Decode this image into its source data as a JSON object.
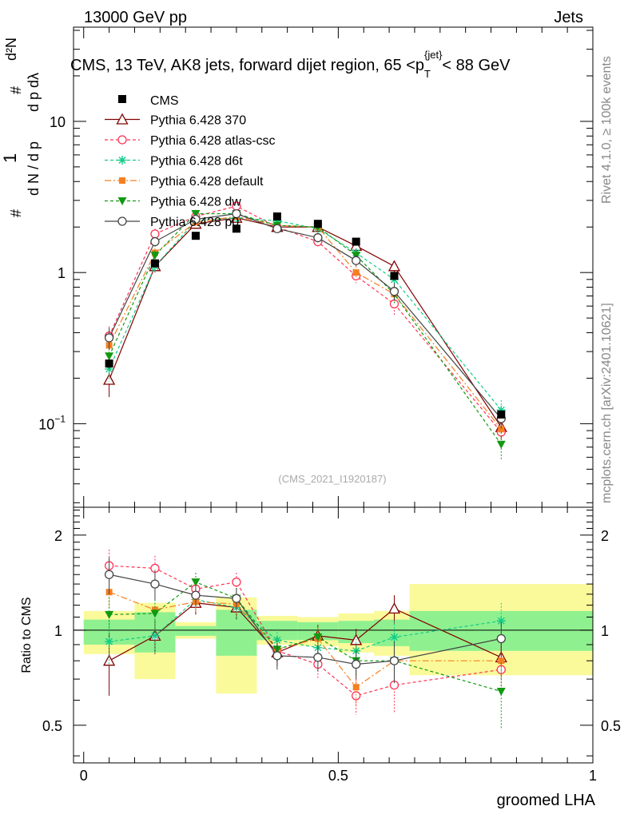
{
  "header": {
    "left": "13000 GeV pp",
    "right": "Jets",
    "side_top": "Rivet 4.1.0, ≥ 100k events",
    "side_bottom": "mcplots.cern.ch [arXiv:2401.10621]"
  },
  "chart_data": [
    {
      "type": "line",
      "panel": "main",
      "title": "CMS, 13 TeV, AK8 jets, forward dijet region, 65 <p",
      "title_sub": "T",
      "title_sup": "{jet}",
      "title_end": "< 88 GeV",
      "ylabel": "1 / dN/dpT d²N/dpT dλ",
      "watermark": "(CMS_2021_I1920187)",
      "y_scale": "log",
      "ylim": [
        0.028,
        42
      ],
      "xlim": [
        -0.02,
        1.0
      ],
      "y_ticks": [
        {
          "value": 0.1,
          "base": "10",
          "exp": "−1"
        },
        {
          "value": 1,
          "base": "1",
          "exp": ""
        },
        {
          "value": 10,
          "base": "10",
          "exp": ""
        }
      ],
      "x": [
        0.05,
        0.14,
        0.22,
        0.3,
        0.38,
        0.46,
        0.535,
        0.61,
        0.82
      ],
      "data_label": "CMS",
      "data_values": [
        0.25,
        1.15,
        1.75,
        1.95,
        2.35,
        2.1,
        1.6,
        0.95,
        0.115
      ],
      "series": [
        {
          "name": "Pythia 6.428 370",
          "values": [
            0.195,
            1.1,
            2.1,
            2.3,
            2.0,
            2.0,
            1.5,
            1.1,
            0.095
          ],
          "err": [
            0.045,
            0.1,
            0.15,
            0.15,
            0.12,
            0.12,
            0.12,
            0.1,
            0.015
          ]
        },
        {
          "name": "Pythia 6.428 atlas-csc",
          "values": [
            0.38,
            1.8,
            2.35,
            2.75,
            2.0,
            1.6,
            0.95,
            0.62,
            0.088
          ],
          "err": [
            0.06,
            0.15,
            0.15,
            0.18,
            0.12,
            0.12,
            0.1,
            0.1,
            0.015
          ]
        },
        {
          "name": "Pythia 6.428 d6t",
          "values": [
            0.23,
            1.1,
            2.2,
            2.3,
            2.2,
            1.95,
            1.35,
            0.9,
            0.123
          ],
          "err": [
            0.04,
            0.1,
            0.15,
            0.15,
            0.12,
            0.12,
            0.1,
            0.1,
            0.02
          ]
        },
        {
          "name": "Pythia 6.428 default",
          "values": [
            0.33,
            1.35,
            2.15,
            2.35,
            2.05,
            2.0,
            1.0,
            0.72,
            0.092
          ],
          "err": [
            0.05,
            0.1,
            0.15,
            0.15,
            0.12,
            0.12,
            0.1,
            0.1,
            0.015
          ]
        },
        {
          "name": "Pythia 6.428 dw",
          "values": [
            0.28,
            1.3,
            2.45,
            2.45,
            2.05,
            2.0,
            1.3,
            0.72,
            0.073
          ],
          "err": [
            0.05,
            0.1,
            0.15,
            0.15,
            0.12,
            0.12,
            0.1,
            0.1,
            0.015
          ]
        },
        {
          "name": "Pythia 6.428 p0",
          "values": [
            0.37,
            1.6,
            2.25,
            2.45,
            1.95,
            1.7,
            1.2,
            0.75,
            0.108
          ],
          "err": [
            0.06,
            0.12,
            0.15,
            0.15,
            0.12,
            0.12,
            0.1,
            0.1,
            0.015
          ]
        }
      ]
    },
    {
      "type": "line",
      "panel": "ratio",
      "ylabel": "Ratio to CMS",
      "xlabel": "groomed LHA",
      "ylim": [
        0.38,
        2.45
      ],
      "xlim": [
        -0.02,
        1.0
      ],
      "y_ticks": [
        0.5,
        1,
        2
      ],
      "y_tick_labels": [
        "0.5",
        "1",
        "2"
      ],
      "x_ticks": [
        0,
        0.5,
        1
      ],
      "x_tick_labels": [
        "0",
        "0.5",
        "1"
      ],
      "bands": [
        {
          "x0": 0.0,
          "x1": 0.1,
          "inner": [
            0.9,
            1.08
          ],
          "outer": [
            0.84,
            1.15
          ]
        },
        {
          "x0": 0.1,
          "x1": 0.18,
          "inner": [
            0.85,
            1.14
          ],
          "outer": [
            0.7,
            1.22
          ]
        },
        {
          "x0": 0.18,
          "x1": 0.26,
          "inner": [
            0.96,
            1.03
          ],
          "outer": [
            0.94,
            1.06
          ]
        },
        {
          "x0": 0.26,
          "x1": 0.34,
          "inner": [
            0.83,
            1.16
          ],
          "outer": [
            0.63,
            1.27
          ]
        },
        {
          "x0": 0.34,
          "x1": 0.42,
          "inner": [
            0.93,
            1.07
          ],
          "outer": [
            0.9,
            1.11
          ]
        },
        {
          "x0": 0.42,
          "x1": 0.5,
          "inner": [
            0.93,
            1.06
          ],
          "outer": [
            0.89,
            1.1
          ]
        },
        {
          "x0": 0.5,
          "x1": 0.57,
          "inner": [
            0.91,
            1.07
          ],
          "outer": [
            0.85,
            1.13
          ]
        },
        {
          "x0": 0.57,
          "x1": 0.64,
          "inner": [
            0.89,
            1.08
          ],
          "outer": [
            0.83,
            1.15
          ]
        },
        {
          "x0": 0.64,
          "x1": 1.0,
          "inner": [
            0.86,
            1.15
          ],
          "outer": [
            0.72,
            1.4
          ]
        }
      ],
      "series": [
        {
          "name": "Pythia 6.428 370",
          "values": [
            0.8,
            0.96,
            1.22,
            1.18,
            0.85,
            0.96,
            0.93,
            1.17,
            0.82
          ],
          "err": [
            0.18,
            0.12,
            0.1,
            0.1,
            0.08,
            0.08,
            0.08,
            0.12,
            0.1
          ]
        },
        {
          "name": "Pythia 6.428 atlas-csc",
          "values": [
            1.6,
            1.57,
            1.35,
            1.42,
            0.86,
            0.78,
            0.62,
            0.67,
            0.75
          ],
          "err": [
            0.2,
            0.15,
            0.1,
            0.1,
            0.08,
            0.08,
            0.08,
            0.12,
            0.1
          ]
        },
        {
          "name": "Pythia 6.428 d6t",
          "values": [
            0.92,
            0.96,
            1.25,
            1.18,
            0.93,
            0.88,
            0.86,
            0.95,
            1.07
          ],
          "err": [
            0.15,
            0.12,
            0.1,
            0.1,
            0.08,
            0.08,
            0.08,
            0.12,
            0.15
          ]
        },
        {
          "name": "Pythia 6.428 default",
          "values": [
            1.32,
            1.16,
            1.23,
            1.21,
            0.87,
            0.94,
            0.66,
            0.8,
            0.8
          ],
          "err": [
            0.15,
            0.12,
            0.1,
            0.1,
            0.08,
            0.08,
            0.08,
            0.12,
            0.1
          ]
        },
        {
          "name": "Pythia 6.428 dw",
          "values": [
            1.12,
            1.13,
            1.42,
            1.26,
            0.87,
            0.95,
            0.8,
            0.8,
            0.64
          ],
          "err": [
            0.15,
            0.12,
            0.1,
            0.1,
            0.08,
            0.08,
            0.08,
            0.12,
            0.15
          ]
        },
        {
          "name": "Pythia 6.428 p0",
          "values": [
            1.5,
            1.4,
            1.29,
            1.26,
            0.83,
            0.82,
            0.78,
            0.8,
            0.94
          ],
          "err": [
            0.2,
            0.15,
            0.1,
            0.1,
            0.08,
            0.08,
            0.08,
            0.12,
            0.12
          ]
        }
      ]
    }
  ],
  "styles": {
    "data_color": "#000000",
    "ref_line_color": "#000000",
    "band_inner": "#8ff08f",
    "band_outer": "#fafa9b",
    "series": [
      {
        "color": "#800000",
        "marker": "triangle-open",
        "dash": ""
      },
      {
        "color": "#ff3355",
        "marker": "circle-open",
        "dash": "4,3"
      },
      {
        "color": "#11cc88",
        "marker": "star",
        "dash": "4,3"
      },
      {
        "color": "#f58020",
        "marker": "square-filled",
        "dash": "8,3,2,3"
      },
      {
        "color": "#119911",
        "marker": "triangle-down-filled",
        "dash": "4,3"
      },
      {
        "color": "#444444",
        "marker": "circle-open",
        "dash": ""
      }
    ]
  }
}
